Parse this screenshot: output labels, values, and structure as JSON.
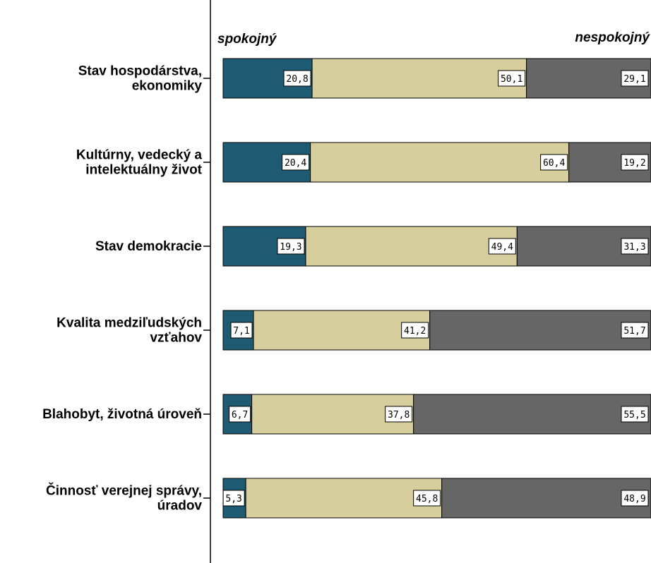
{
  "chart_data": {
    "type": "bar",
    "orientation": "horizontal",
    "stacked": true,
    "normalized_percent": true,
    "left_end_label": "spokojný",
    "right_end_label": "nespokojný",
    "categories": [
      [
        "Stav hospodárstva,",
        "ekonomiky"
      ],
      [
        "Kultúrny, vedecký a",
        "intelektuálny život"
      ],
      [
        "Stav demokracie"
      ],
      [
        "Kvalita medziľudských",
        "vzťahov"
      ],
      [
        "Blahobyt, životná úroveň"
      ],
      [
        "Činnosť verejnej správy,",
        "úradov"
      ]
    ],
    "series": [
      {
        "color": "#1e5a72",
        "values": [
          20.8,
          20.4,
          19.3,
          7.1,
          6.7,
          5.3
        ],
        "labels": [
          "20,8",
          "20,4",
          "19,3",
          "7,1",
          "6,7",
          "5,3"
        ]
      },
      {
        "color": "#d6ce9c",
        "values": [
          50.1,
          60.4,
          49.4,
          41.2,
          37.8,
          45.8
        ],
        "labels": [
          "50,1",
          "60,4",
          "49,4",
          "41,2",
          "37,8",
          "45,8"
        ]
      },
      {
        "color": "#666666",
        "values": [
          29.1,
          19.2,
          31.3,
          51.7,
          55.5,
          48.9
        ],
        "labels": [
          "29,1",
          "19,2",
          "31,3",
          "51,7",
          "55,5",
          "48,9"
        ]
      }
    ],
    "xlim": [
      0,
      100
    ],
    "grid": false,
    "legend": "none"
  }
}
